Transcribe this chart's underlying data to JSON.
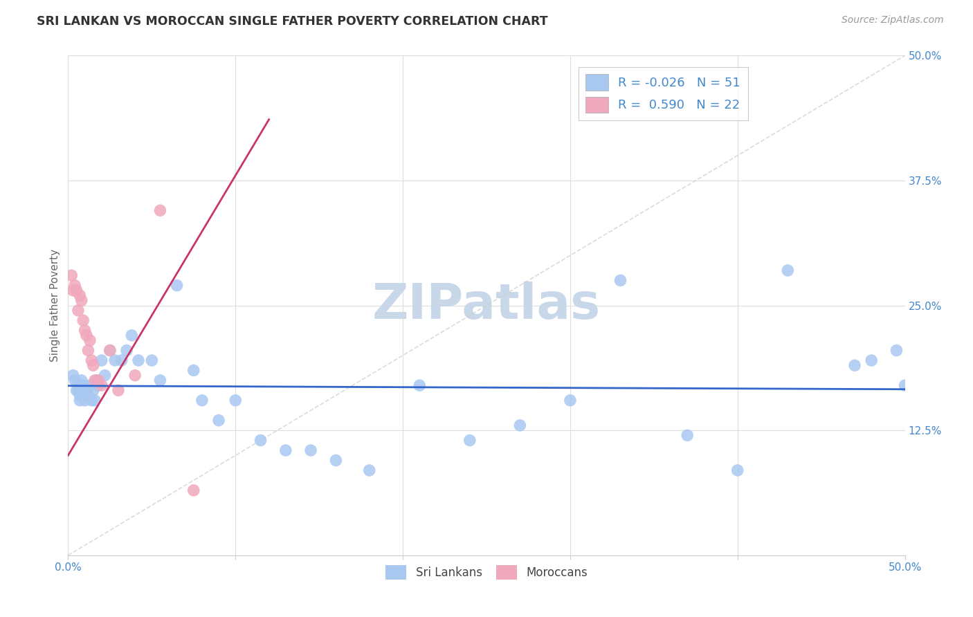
{
  "title": "SRI LANKAN VS MOROCCAN SINGLE FATHER POVERTY CORRELATION CHART",
  "source": "Source: ZipAtlas.com",
  "ylabel": "Single Father Poverty",
  "legend_label1": "Sri Lankans",
  "legend_label2": "Moroccans",
  "R1": "-0.026",
  "N1": "51",
  "R2": "0.590",
  "N2": "22",
  "color1": "#a8c8f0",
  "color2": "#f0a8bc",
  "line1_color": "#3366cc",
  "line2_color": "#cc3366",
  "diag_color": "#cccccc",
  "grid_color": "#dddddd",
  "tick_label_color": "#4488cc",
  "ylabel_color": "#666666",
  "title_color": "#333333",
  "source_color": "#999999",
  "watermark_color": "#c8d8e8",
  "xlim": [
    0.0,
    0.5
  ],
  "ylim": [
    0.0,
    0.5
  ],
  "sl_x": [
    0.003,
    0.004,
    0.005,
    0.006,
    0.006,
    0.007,
    0.007,
    0.008,
    0.009,
    0.01,
    0.01,
    0.011,
    0.012,
    0.013,
    0.014,
    0.015,
    0.016,
    0.017,
    0.018,
    0.02,
    0.022,
    0.025,
    0.028,
    0.032,
    0.035,
    0.038,
    0.042,
    0.05,
    0.055,
    0.065,
    0.075,
    0.08,
    0.09,
    0.1,
    0.115,
    0.13,
    0.145,
    0.16,
    0.18,
    0.21,
    0.24,
    0.27,
    0.3,
    0.33,
    0.37,
    0.4,
    0.43,
    0.47,
    0.48,
    0.495,
    0.5
  ],
  "sl_y": [
    0.18,
    0.175,
    0.165,
    0.17,
    0.165,
    0.16,
    0.155,
    0.175,
    0.17,
    0.165,
    0.155,
    0.162,
    0.16,
    0.17,
    0.155,
    0.165,
    0.155,
    0.175,
    0.17,
    0.195,
    0.18,
    0.205,
    0.195,
    0.195,
    0.205,
    0.22,
    0.195,
    0.195,
    0.175,
    0.27,
    0.185,
    0.155,
    0.135,
    0.155,
    0.115,
    0.105,
    0.105,
    0.095,
    0.085,
    0.17,
    0.115,
    0.13,
    0.155,
    0.275,
    0.12,
    0.085,
    0.285,
    0.19,
    0.195,
    0.205,
    0.17
  ],
  "mo_x": [
    0.002,
    0.003,
    0.004,
    0.005,
    0.006,
    0.007,
    0.008,
    0.009,
    0.01,
    0.011,
    0.012,
    0.013,
    0.014,
    0.015,
    0.016,
    0.018,
    0.02,
    0.025,
    0.03,
    0.04,
    0.055,
    0.075
  ],
  "mo_y": [
    0.28,
    0.265,
    0.27,
    0.265,
    0.245,
    0.26,
    0.255,
    0.235,
    0.225,
    0.22,
    0.205,
    0.215,
    0.195,
    0.19,
    0.175,
    0.175,
    0.17,
    0.205,
    0.165,
    0.18,
    0.345,
    0.065
  ],
  "mo_trendline_x0": 0.0,
  "mo_trendline_x1": 0.12,
  "sl_trendline_x0": 0.0,
  "sl_trendline_x1": 0.5
}
